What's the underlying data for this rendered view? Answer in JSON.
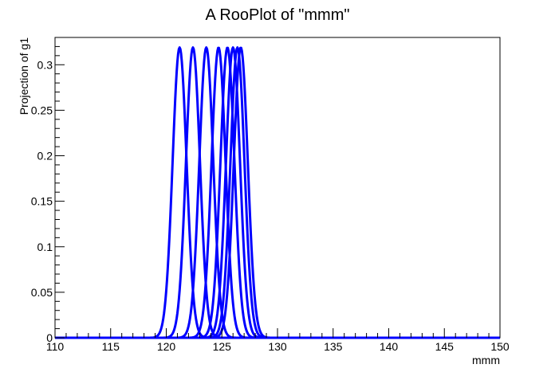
{
  "chart_data": {
    "type": "line",
    "title": "A RooPlot of \"mmm\"",
    "xlabel": "mmm",
    "ylabel": "Projection of g1",
    "xlim": [
      110,
      150
    ],
    "ylim": [
      0,
      0.33
    ],
    "x_ticks": [
      "110",
      "115",
      "120",
      "125",
      "130",
      "135",
      "140",
      "145",
      "150"
    ],
    "y_ticks": [
      "0",
      "0.05",
      "0.1",
      "0.15",
      "0.2",
      "0.25",
      "0.3"
    ],
    "grid": false,
    "legend": "none",
    "series_color": "#0000ff",
    "curve_peak": 0.319,
    "curve_sigma": 0.63,
    "curve_means": [
      121.2,
      122.4,
      123.6,
      124.7,
      125.5,
      126.0,
      126.4,
      126.7
    ]
  }
}
